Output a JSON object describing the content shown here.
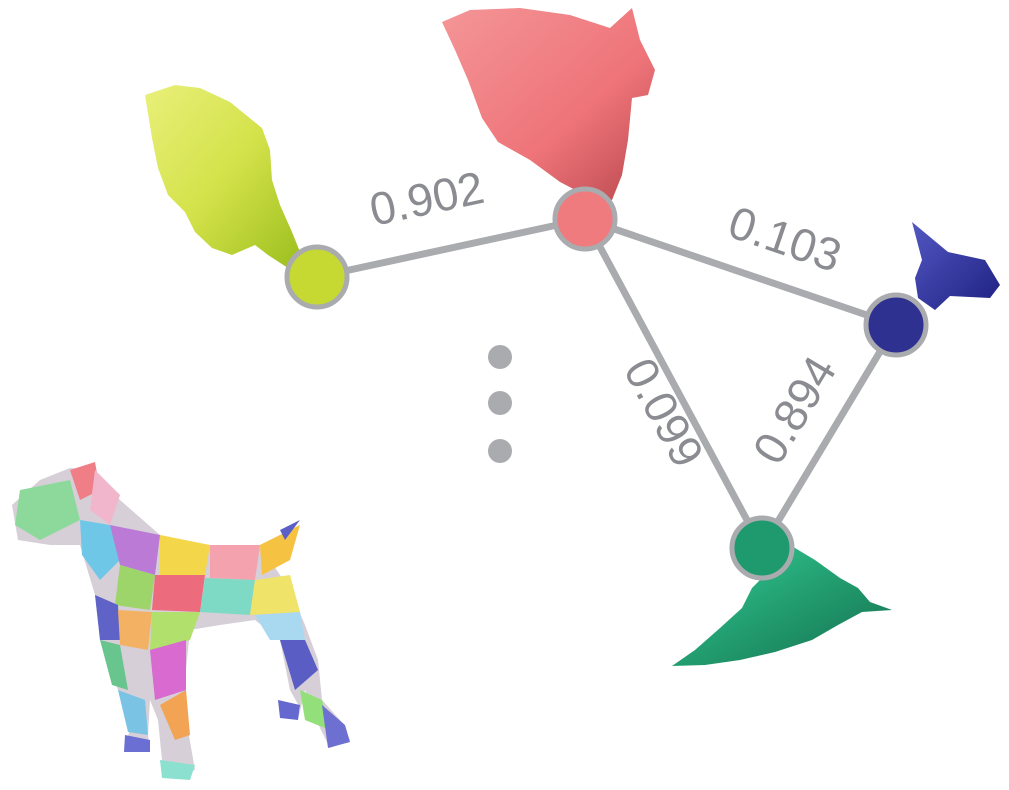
{
  "diagram": {
    "nodes": [
      {
        "id": "yellow-green",
        "color": "#c5d932"
      },
      {
        "id": "pink",
        "color": "#ef7b7e"
      },
      {
        "id": "navy",
        "color": "#2f3190"
      },
      {
        "id": "green",
        "color": "#1f9a6e"
      }
    ],
    "edges": [
      {
        "from": "yellow-green",
        "to": "pink",
        "label": "0.902"
      },
      {
        "from": "pink",
        "to": "navy",
        "label": "0.103"
      },
      {
        "from": "pink",
        "to": "green",
        "label": "0.099"
      },
      {
        "from": "navy",
        "to": "green",
        "label": "0.894"
      }
    ],
    "colors": {
      "edge": "#a9abae",
      "node_stroke": "#a9abae",
      "dots": "#a9abae",
      "label": "#8a8c91"
    }
  }
}
